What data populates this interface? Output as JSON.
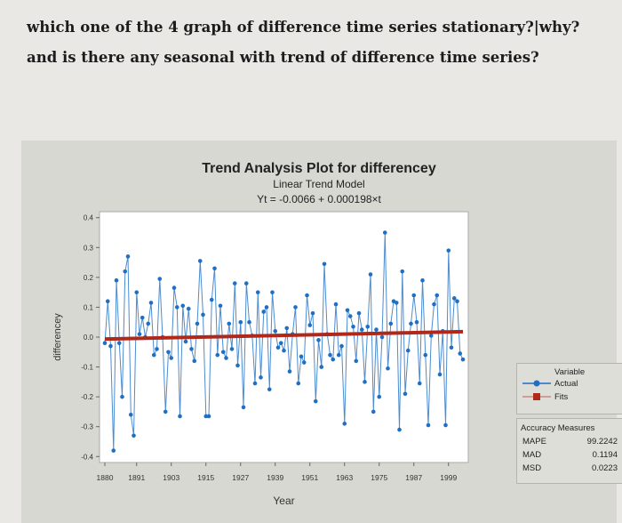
{
  "question": {
    "line1": "which one of the 4 graph of difference time series stationary?|why?",
    "line2": "and is there any seasonal with trend of difference time series?"
  },
  "legend": {
    "title": "Variable",
    "items": [
      "Actual",
      "Fits"
    ]
  },
  "accuracy": {
    "title": "Accuracy Measures",
    "rows": [
      {
        "label": "MAPE",
        "value": "99.2242"
      },
      {
        "label": "MAD",
        "value": "0.1194"
      },
      {
        "label": "MSD",
        "value": "0.0223"
      }
    ]
  },
  "colors": {
    "actual": "#1f6fc4",
    "fits": "#b0281a",
    "plot_bg": "#ffffff",
    "panel_bg": "#d8d8d2"
  },
  "chart_data": {
    "type": "line",
    "title": "Trend Analysis Plot for differencey",
    "subtitle": "Linear Trend Model",
    "equation": "Yt = -0.0066 + 0.000198×t",
    "xlabel": "Year",
    "ylabel": "differencey",
    "ylim": [
      -0.42,
      0.42
    ],
    "yticks": [
      "0.4",
      "0.3",
      "0.2",
      "0.1",
      "0.0",
      "-0.1",
      "-0.2",
      "-0.3",
      "-0.4"
    ],
    "ytick_values": [
      0.4,
      0.3,
      0.2,
      0.1,
      0.0,
      -0.1,
      -0.2,
      -0.3,
      -0.4
    ],
    "xticks": [
      "1880",
      "1891",
      "1903",
      "1915",
      "1927",
      "1939",
      "1951",
      "1963",
      "1975",
      "1987",
      "1999"
    ],
    "x_start": 1880,
    "trend": {
      "intercept": -0.0066,
      "slope": 0.000198
    },
    "series": [
      {
        "name": "Actual",
        "values": [
          -0.02,
          0.12,
          -0.03,
          -0.38,
          0.19,
          -0.02,
          -0.2,
          0.22,
          0.27,
          -0.26,
          -0.33,
          0.15,
          0.01,
          0.065,
          0.0,
          0.045,
          0.115,
          -0.06,
          -0.04,
          0.195,
          0.0,
          -0.25,
          -0.05,
          -0.07,
          0.165,
          0.1,
          -0.265,
          0.105,
          -0.015,
          0.095,
          -0.04,
          -0.08,
          0.045,
          0.255,
          0.075,
          -0.265,
          -0.265,
          0.125,
          0.23,
          -0.06,
          0.105,
          -0.05,
          -0.07,
          0.045,
          -0.04,
          0.18,
          -0.095,
          0.05,
          -0.235,
          0.18,
          0.05,
          0.005,
          -0.155,
          0.15,
          -0.135,
          0.085,
          0.1,
          -0.175,
          0.15,
          0.02,
          -0.035,
          -0.02,
          -0.045,
          0.03,
          -0.115,
          0.01,
          0.1,
          -0.155,
          -0.065,
          -0.085,
          0.14,
          0.04,
          0.08,
          -0.215,
          -0.01,
          -0.1,
          0.245,
          0.01,
          -0.06,
          -0.075,
          0.11,
          -0.06,
          -0.03,
          -0.29,
          0.09,
          0.07,
          0.035,
          -0.08,
          0.08,
          0.025,
          -0.15,
          0.035,
          0.21,
          -0.25,
          0.025,
          -0.2,
          0.0,
          0.35,
          -0.105,
          0.045,
          0.12,
          0.115,
          -0.31,
          0.22,
          -0.19,
          -0.045,
          0.045,
          0.14,
          0.05,
          -0.155,
          0.19,
          -0.06,
          -0.295,
          0.005,
          0.11,
          0.14,
          -0.125,
          0.02,
          -0.295,
          0.29,
          -0.035,
          0.13,
          0.12,
          -0.055,
          -0.075
        ]
      }
    ]
  }
}
